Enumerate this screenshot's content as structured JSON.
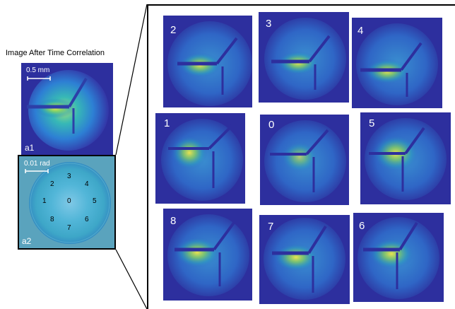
{
  "figure": {
    "title": "Image After Time Correlation",
    "a1": {
      "panel_label": "a1",
      "scale_label": "0.5 mm"
    },
    "a2": {
      "panel_label": "a2",
      "scale_label": "0.01 rad",
      "points": [
        {
          "label": "0"
        },
        {
          "label": "1"
        },
        {
          "label": "2"
        },
        {
          "label": "3"
        },
        {
          "label": "4"
        },
        {
          "label": "5"
        },
        {
          "label": "6"
        },
        {
          "label": "7"
        },
        {
          "label": "8"
        }
      ]
    },
    "tiles": [
      {
        "label": "2"
      },
      {
        "label": "3"
      },
      {
        "label": "4"
      },
      {
        "label": "1"
      },
      {
        "label": "0"
      },
      {
        "label": "5"
      },
      {
        "label": "8"
      },
      {
        "label": "7"
      },
      {
        "label": "6"
      }
    ]
  }
}
